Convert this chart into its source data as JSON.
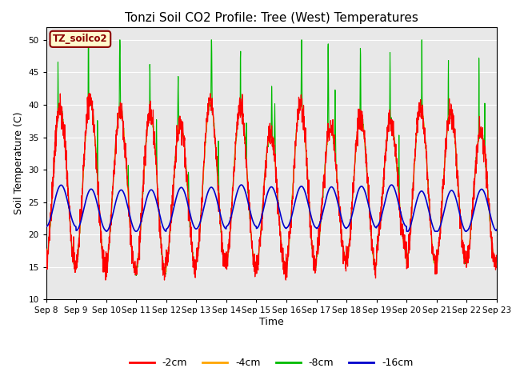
{
  "title": "Tonzi Soil CO2 Profile: Tree (West) Temperatures",
  "ylabel": "Soil Temperature (C)",
  "xlabel": "Time",
  "annotation": "TZ_soilco2",
  "ylim": [
    10,
    52
  ],
  "yticks": [
    10,
    15,
    20,
    25,
    30,
    35,
    40,
    45,
    50
  ],
  "xtick_labels": [
    "Sep 8",
    "Sep 9",
    "Sep 10",
    "Sep 11",
    "Sep 12",
    "Sep 13",
    "Sep 14",
    "Sep 15",
    "Sep 16",
    "Sep 17",
    "Sep 18",
    "Sep 19",
    "Sep 20",
    "Sep 21",
    "Sep 22",
    "Sep 23"
  ],
  "series_colors": [
    "#ff0000",
    "#ffa500",
    "#00bb00",
    "#0000cc"
  ],
  "series_labels": [
    "-2cm",
    "-4cm",
    "-8cm",
    "-16cm"
  ],
  "background_color": "#e8e8e8",
  "title_fontsize": 11,
  "axis_fontsize": 9,
  "legend_fontsize": 9,
  "plot_bgcolor": "#e0e0e0"
}
